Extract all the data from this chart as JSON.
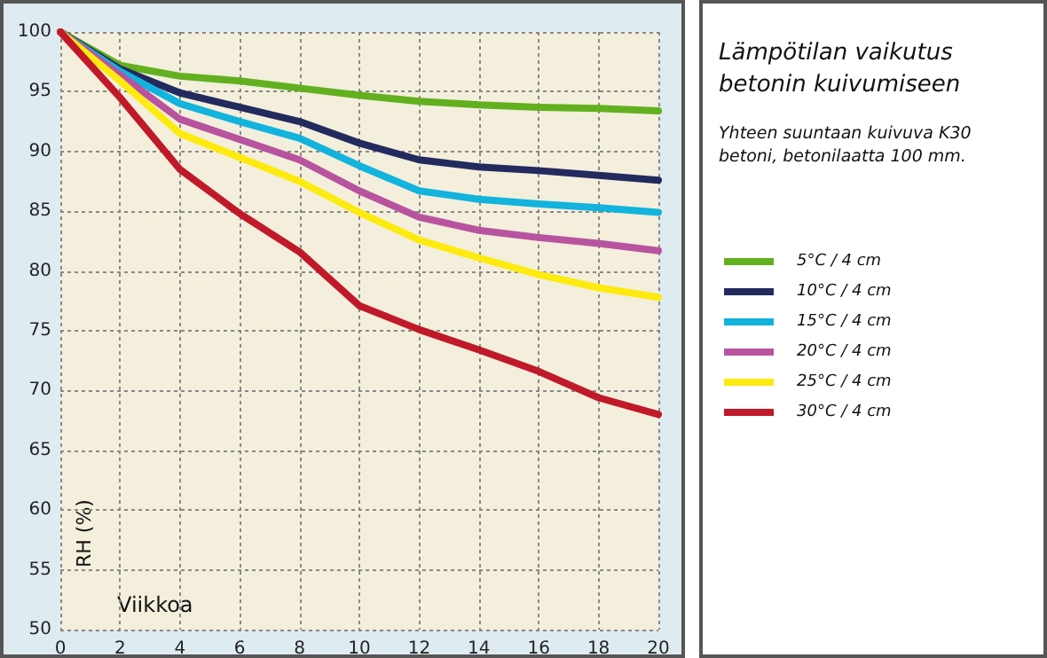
{
  "chart_data": {
    "type": "line",
    "title": "Lämpötilan vaikutus betonin kuivumiseen",
    "subtitle": "Yhteen suuntaan kuivuva K30 betoni, betonilaatta 100 mm.",
    "xlabel": "Viikkoa",
    "ylabel": "RH (%)",
    "x": [
      0,
      2,
      4,
      6,
      8,
      10,
      12,
      14,
      16,
      18,
      20
    ],
    "series": [
      {
        "name": "5°C / 4 cm",
        "color": "#62b01f",
        "values": [
          100,
          97.2,
          96.3,
          95.9,
          95.3,
          94.7,
          94.2,
          93.9,
          93.7,
          93.6,
          93.4
        ]
      },
      {
        "name": "10°C / 4 cm",
        "color": "#232a5e",
        "values": [
          100,
          96.9,
          94.9,
          93.7,
          92.5,
          90.7,
          89.3,
          88.7,
          88.4,
          88.0,
          87.6
        ]
      },
      {
        "name": "15°C / 4 cm",
        "color": "#12b3dd",
        "values": [
          100,
          96.7,
          94.0,
          92.5,
          91.1,
          88.8,
          86.7,
          86.0,
          85.6,
          85.3,
          84.9
        ]
      },
      {
        "name": "20°C / 4 cm",
        "color": "#b8549f",
        "values": [
          100,
          96.4,
          92.7,
          91.0,
          89.3,
          86.7,
          84.5,
          83.4,
          82.8,
          82.3,
          81.7
        ]
      },
      {
        "name": "25°C / 4 cm",
        "color": "#fdea0e",
        "values": [
          100,
          95.9,
          91.5,
          89.5,
          87.5,
          84.9,
          82.6,
          81.1,
          79.7,
          78.6,
          77.8
        ]
      },
      {
        "name": "30°C / 4 cm",
        "color": "#c01a2a",
        "values": [
          100,
          94.5,
          88.5,
          84.8,
          81.6,
          77.1,
          75.1,
          73.4,
          71.6,
          69.4,
          68.0
        ]
      }
    ],
    "xlim": [
      0,
      20
    ],
    "xticks": [
      0,
      2,
      4,
      6,
      8,
      10,
      12,
      14,
      16,
      18,
      20
    ],
    "ylim": [
      50,
      100
    ],
    "yticks": [
      50,
      55,
      60,
      65,
      70,
      75,
      80,
      85,
      90,
      95,
      100
    ],
    "grid": true,
    "legend": "right",
    "marker": "none",
    "line_style": "solid"
  }
}
